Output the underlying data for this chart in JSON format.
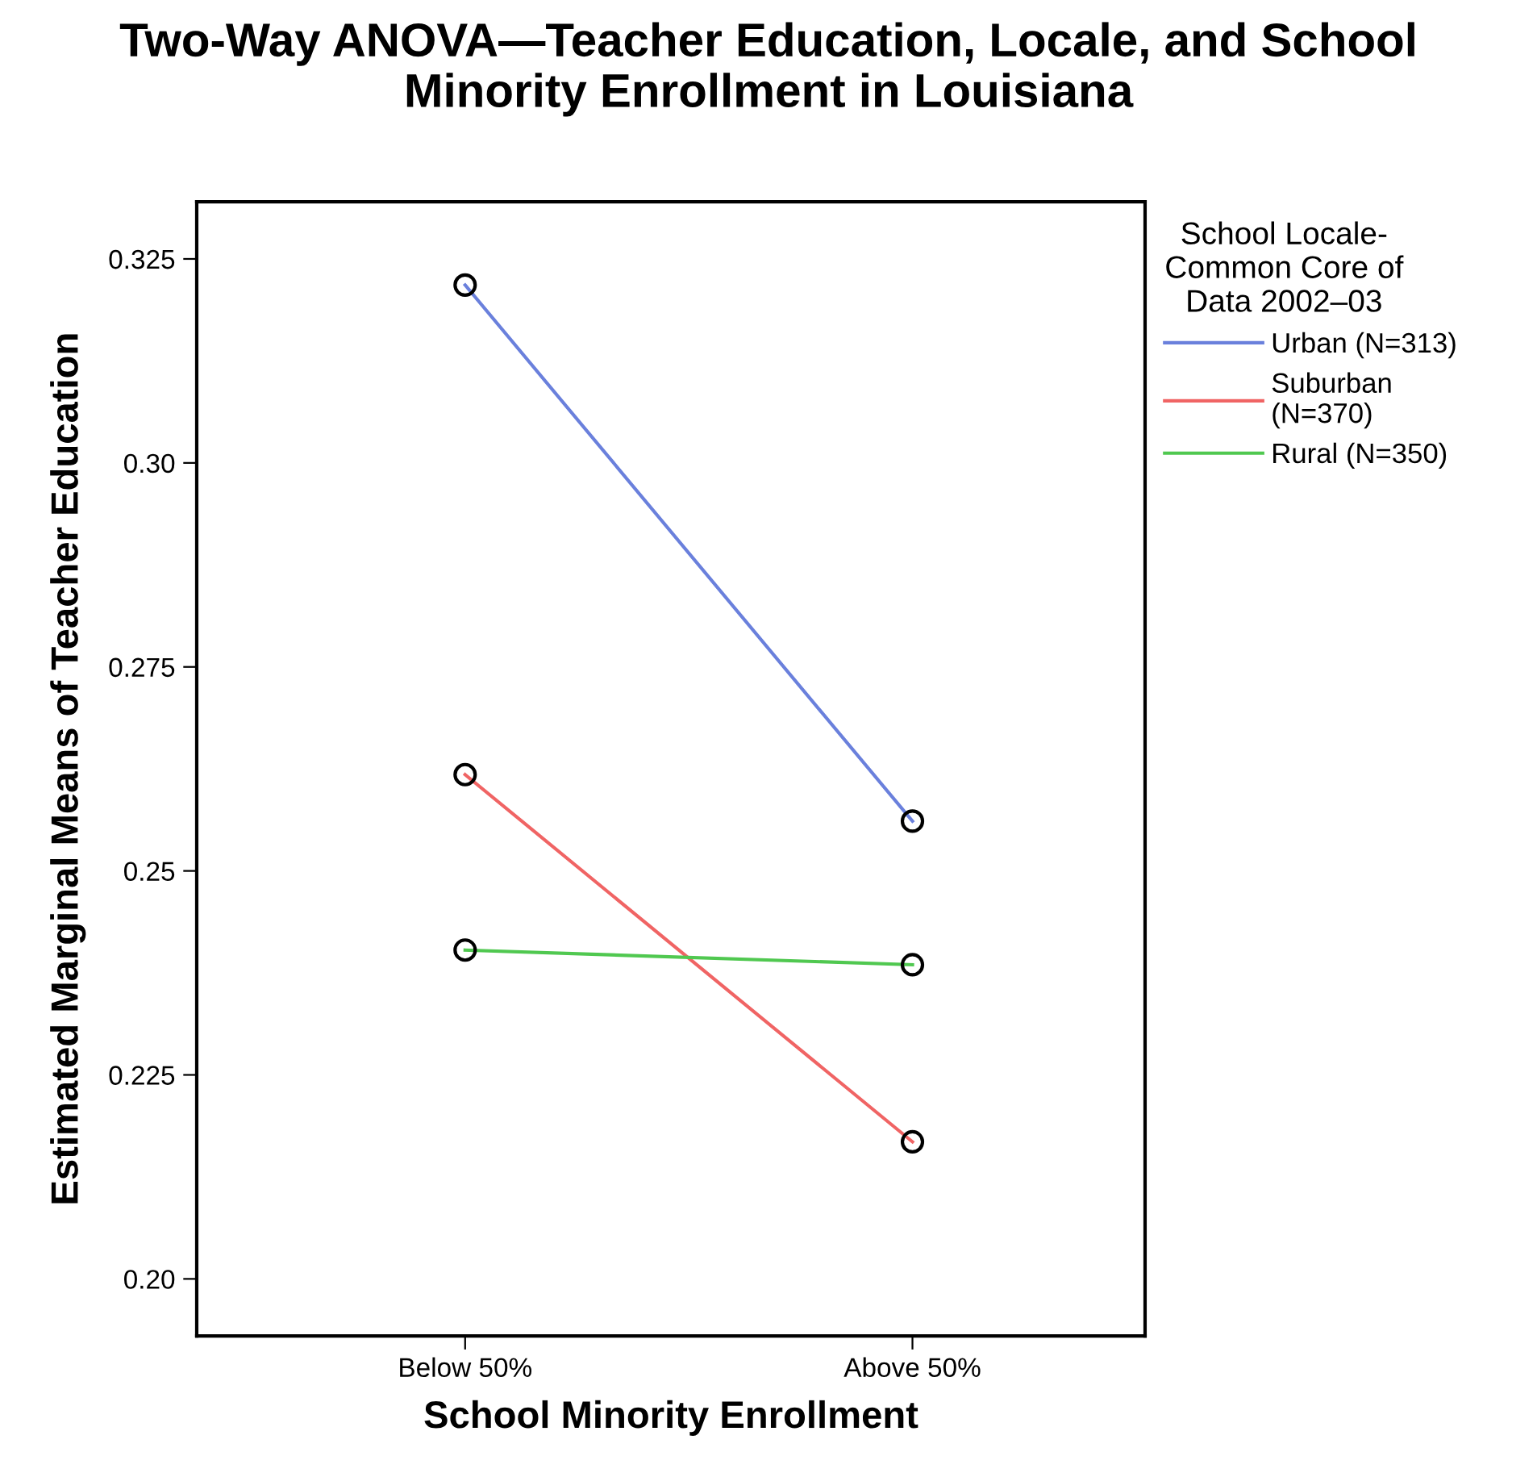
{
  "chart_data": {
    "type": "line",
    "title": "Two-Way ANOVA—Teacher Education, Locale, and School\nMinority Enrollment in Louisiana",
    "xlabel": "School Minority Enrollment",
    "ylabel": "Estimated Marginal Means of Teacher Education",
    "legend_title": "School Locale-\nCommon Core of\nData 2002–03",
    "categories": [
      "Below 50%",
      "Above 50%"
    ],
    "series": [
      {
        "name": "Urban (N=313)",
        "color": "#6a80dc",
        "values": [
          0.3218,
          0.2561
        ]
      },
      {
        "name": "Suburban\n(N=370)",
        "color": "#f06464",
        "values": [
          0.2618,
          0.2168
        ]
      },
      {
        "name": "Rural (N=350)",
        "color": "#50c850",
        "values": [
          0.2403,
          0.2385
        ]
      }
    ],
    "ylim": [
      0.193,
      0.332
    ],
    "yticks": [
      {
        "value": 0.2,
        "label": "0.20"
      },
      0.225,
      0.25,
      0.275,
      {
        "value": 0.3,
        "label": "0.30"
      },
      0.325
    ],
    "grid": false,
    "legend": "right",
    "marker": "circle",
    "line_style": "solid"
  }
}
